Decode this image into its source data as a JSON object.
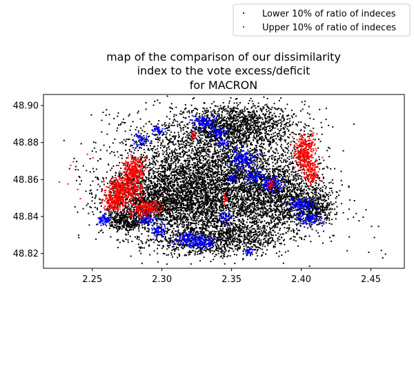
{
  "chart_data": {
    "type": "scatter",
    "title_lines": [
      "map of the comparison of our dissimilarity",
      "index to the vote excess/deficit",
      "for MACRON"
    ],
    "xlabel": "",
    "ylabel": "",
    "xlim": [
      2.215,
      2.474
    ],
    "ylim": [
      48.812,
      48.906
    ],
    "xticks": [
      "2.25",
      "2.30",
      "2.35",
      "2.40",
      "2.45"
    ],
    "yticks": [
      "48.82",
      "48.84",
      "48.86",
      "48.88",
      "48.90"
    ],
    "grid": false,
    "legend": {
      "placement": "upper-right-outside",
      "entries": [
        {
          "label": "Lower 10% of ratio of indeces",
          "color": "#0000ff"
        },
        {
          "label": "Upper 10% of ratio of indeces",
          "color": "#ff0000"
        }
      ]
    },
    "series": [
      {
        "name": "Lower 10% of ratio of indeces",
        "color": "#0000ff",
        "clusters": [
          {
            "x": 2.258,
            "y": 48.839,
            "rx": 0.004,
            "ry": 0.003,
            "n": 70
          },
          {
            "x": 2.288,
            "y": 48.839,
            "rx": 0.006,
            "ry": 0.003,
            "n": 80
          },
          {
            "x": 2.297,
            "y": 48.833,
            "rx": 0.005,
            "ry": 0.003,
            "n": 60
          },
          {
            "x": 2.318,
            "y": 48.828,
            "rx": 0.01,
            "ry": 0.004,
            "n": 140
          },
          {
            "x": 2.33,
            "y": 48.826,
            "rx": 0.008,
            "ry": 0.003,
            "n": 90
          },
          {
            "x": 2.285,
            "y": 48.882,
            "rx": 0.005,
            "ry": 0.003,
            "n": 50
          },
          {
            "x": 2.298,
            "y": 48.887,
            "rx": 0.004,
            "ry": 0.002,
            "n": 40
          },
          {
            "x": 2.33,
            "y": 48.891,
            "rx": 0.008,
            "ry": 0.003,
            "n": 110
          },
          {
            "x": 2.34,
            "y": 48.886,
            "rx": 0.006,
            "ry": 0.003,
            "n": 70
          },
          {
            "x": 2.358,
            "y": 48.871,
            "rx": 0.008,
            "ry": 0.005,
            "n": 140
          },
          {
            "x": 2.365,
            "y": 48.862,
            "rx": 0.006,
            "ry": 0.003,
            "n": 70
          },
          {
            "x": 2.378,
            "y": 48.858,
            "rx": 0.007,
            "ry": 0.004,
            "n": 110
          },
          {
            "x": 2.35,
            "y": 48.861,
            "rx": 0.003,
            "ry": 0.002,
            "n": 30
          },
          {
            "x": 2.4,
            "y": 48.847,
            "rx": 0.008,
            "ry": 0.003,
            "n": 110
          },
          {
            "x": 2.405,
            "y": 48.839,
            "rx": 0.008,
            "ry": 0.003,
            "n": 100
          },
          {
            "x": 2.345,
            "y": 48.84,
            "rx": 0.004,
            "ry": 0.003,
            "n": 40
          },
          {
            "x": 2.362,
            "y": 48.821,
            "rx": 0.003,
            "ry": 0.002,
            "n": 30
          },
          {
            "x": 2.343,
            "y": 48.88,
            "rx": 0.004,
            "ry": 0.002,
            "n": 30
          }
        ]
      },
      {
        "name": "Upper 10% of ratio of indeces",
        "color": "#ff0000",
        "clusters": [
          {
            "x": 2.272,
            "y": 48.855,
            "rx": 0.011,
            "ry": 0.006,
            "n": 380
          },
          {
            "x": 2.279,
            "y": 48.865,
            "rx": 0.007,
            "ry": 0.006,
            "n": 260
          },
          {
            "x": 2.266,
            "y": 48.848,
            "rx": 0.007,
            "ry": 0.004,
            "n": 160
          },
          {
            "x": 2.288,
            "y": 48.845,
            "rx": 0.01,
            "ry": 0.004,
            "n": 200
          },
          {
            "x": 2.402,
            "y": 48.875,
            "rx": 0.007,
            "ry": 0.009,
            "n": 320
          },
          {
            "x": 2.407,
            "y": 48.864,
            "rx": 0.005,
            "ry": 0.006,
            "n": 120
          },
          {
            "x": 2.378,
            "y": 48.858,
            "rx": 0.002,
            "ry": 0.002,
            "n": 25
          },
          {
            "x": 2.322,
            "y": 48.884,
            "rx": 0.002,
            "ry": 0.002,
            "n": 20
          },
          {
            "x": 2.345,
            "y": 48.85,
            "rx": 0.002,
            "ry": 0.002,
            "n": 20
          }
        ],
        "isolated_points": [
          [
            2.226,
            48.859
          ],
          [
            2.232,
            48.858
          ],
          [
            2.234,
            48.868
          ],
          [
            2.236,
            48.87
          ],
          [
            2.239,
            48.855
          ],
          [
            2.241,
            48.85
          ],
          [
            2.246,
            48.874
          ],
          [
            2.25,
            48.872
          ],
          [
            2.258,
            48.845
          ],
          [
            2.305,
            48.845
          ]
        ]
      },
      {
        "name": "",
        "color": "#000000",
        "clusters": [
          {
            "x": 2.335,
            "y": 48.86,
            "rx": 0.062,
            "ry": 0.03,
            "n": 5200
          },
          {
            "x": 2.3,
            "y": 48.848,
            "rx": 0.04,
            "ry": 0.014,
            "n": 1400
          },
          {
            "x": 2.355,
            "y": 48.89,
            "rx": 0.038,
            "ry": 0.01,
            "n": 1100
          },
          {
            "x": 2.385,
            "y": 48.85,
            "rx": 0.03,
            "ry": 0.016,
            "n": 1000
          },
          {
            "x": 2.34,
            "y": 48.828,
            "rx": 0.04,
            "ry": 0.008,
            "n": 900
          },
          {
            "x": 2.41,
            "y": 48.845,
            "rx": 0.012,
            "ry": 0.008,
            "n": 300
          },
          {
            "x": 2.272,
            "y": 48.838,
            "rx": 0.012,
            "ry": 0.004,
            "n": 250
          }
        ],
        "isolated_points": [
          [
            2.437,
            48.84
          ],
          [
            2.439,
            48.842
          ],
          [
            2.441,
            48.838
          ],
          [
            2.444,
            48.84
          ],
          [
            2.446,
            48.844
          ],
          [
            2.45,
            48.835
          ],
          [
            2.452,
            48.829
          ],
          [
            2.455,
            48.835
          ],
          [
            2.457,
            48.822
          ],
          [
            2.458,
            48.818
          ],
          [
            2.46,
            48.82
          ],
          [
            2.448,
            48.821
          ],
          [
            2.433,
            48.839
          ],
          [
            2.421,
            48.827
          ],
          [
            2.423,
            48.83
          ],
          [
            2.415,
            48.826
          ],
          [
            2.42,
            48.829
          ],
          [
            2.282,
            48.829
          ],
          [
            2.285,
            48.831
          ],
          [
            2.262,
            48.878
          ],
          [
            2.26,
            48.876
          ],
          [
            2.288,
            48.826
          ]
        ]
      }
    ]
  }
}
